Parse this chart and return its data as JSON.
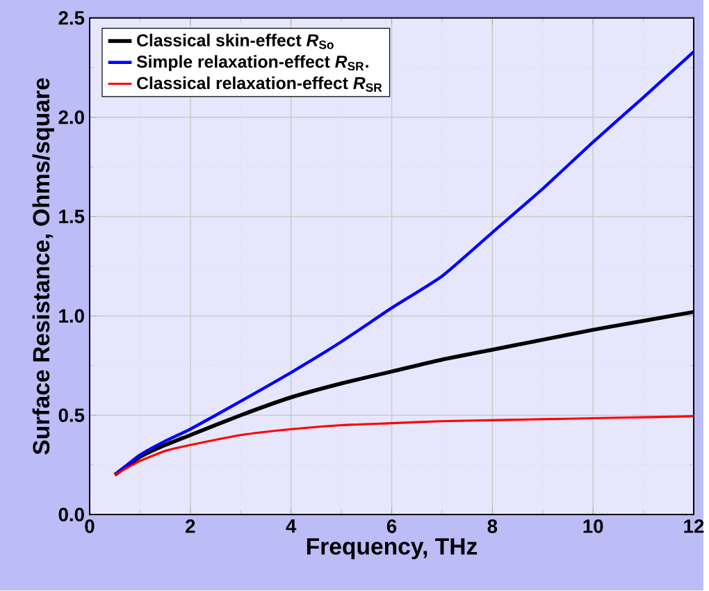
{
  "chart_data": {
    "type": "line",
    "xlabel": "Frequency, THz",
    "ylabel": "Surface Resistance, Ohms/square",
    "xlim": [
      0,
      12
    ],
    "ylim": [
      0,
      2.5
    ],
    "xticks": [
      0,
      2,
      4,
      6,
      8,
      10,
      12
    ],
    "yticks": [
      {
        "value": 0,
        "label": "0.0"
      },
      {
        "value": 0.5,
        "label": "0.5"
      },
      {
        "value": 1,
        "label": "1.0"
      },
      {
        "value": 1.5,
        "label": "1.5"
      },
      {
        "value": 2,
        "label": "2.0"
      },
      {
        "value": 2.5,
        "label": "2.5"
      }
    ],
    "grid": true,
    "legend": "top left",
    "line_style": "solid",
    "series": [
      {
        "name": "Classical skin-effect *R*$_{So}$",
        "color": "#000000",
        "x": [
          0.5,
          1,
          1.5,
          2,
          3,
          4,
          5,
          6,
          7,
          8,
          9,
          10,
          11,
          12
        ],
        "values": [
          0.2,
          0.29,
          0.35,
          0.4,
          0.5,
          0.59,
          0.66,
          0.72,
          0.78,
          0.83,
          0.88,
          0.93,
          0.975,
          1.02
        ]
      },
      {
        "name": "Simple relaxation-effect *R*$_{SR}$.",
        "color": "#0000ff",
        "x": [
          0.5,
          1,
          1.5,
          2,
          3,
          4,
          5,
          6,
          7,
          8,
          9,
          10,
          11,
          12
        ],
        "values": [
          0.2,
          0.3,
          0.37,
          0.43,
          0.57,
          0.715,
          0.87,
          1.04,
          1.2,
          1.42,
          1.64,
          1.875,
          2.1,
          2.33
        ]
      },
      {
        "name": "Classical relaxation-effect *R*$_{SR}$",
        "color": "#ff0000",
        "x": [
          0.5,
          1,
          1.5,
          2,
          3,
          4,
          5,
          6,
          7,
          8,
          9,
          10,
          11,
          12
        ],
        "values": [
          0.2,
          0.27,
          0.32,
          0.35,
          0.4,
          0.43,
          0.45,
          0.46,
          0.47,
          0.475,
          0.48,
          0.485,
          0.49,
          0.495
        ]
      }
    ]
  }
}
